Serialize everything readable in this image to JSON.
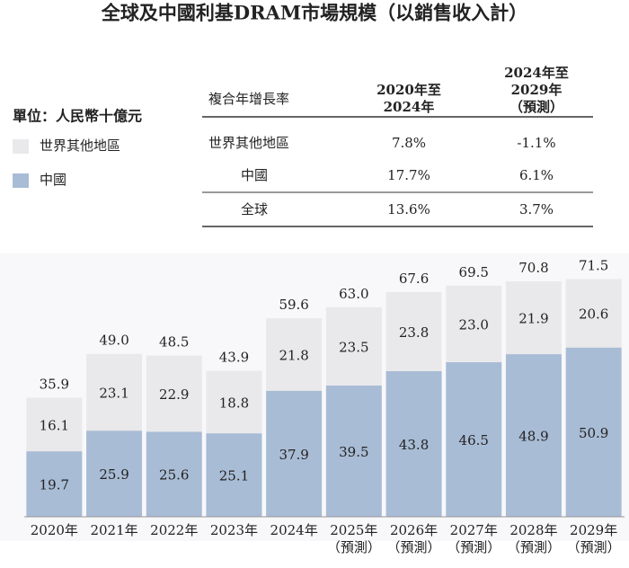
{
  "chart_data": {
    "type": "stacked-bar",
    "title": "全球及中國利基DRAM市場規模（以銷售收入計）",
    "unit": "單位：人民幣十億元",
    "categories": [
      "2020年",
      "2021年",
      "2022年",
      "2023年",
      "2024年",
      "2025年\n（預測）",
      "2026年\n（預測）",
      "2027年\n（預測）",
      "2028年\n（預測）",
      "2029年\n（預測）"
    ],
    "series": [
      {
        "name": "中國",
        "color": "#a9bcd5",
        "values": [
          19.7,
          25.9,
          25.6,
          25.1,
          37.9,
          39.5,
          43.8,
          46.5,
          48.9,
          50.9
        ]
      },
      {
        "name": "世界其他地區",
        "color": "#e9e9eb",
        "values": [
          16.1,
          23.1,
          22.9,
          18.8,
          21.8,
          23.5,
          23.8,
          23.0,
          21.9,
          20.6
        ],
        "value_labels": [
          "16.1",
          "23.1",
          "22.9",
          "18.8",
          "21.8",
          "23.5",
          "23.8",
          "23.0",
          "21.9",
          "20.6"
        ]
      }
    ],
    "totals": [
      35.9,
      49.0,
      48.5,
      43.9,
      59.6,
      63.0,
      67.6,
      69.5,
      70.8,
      71.5
    ],
    "totals_labels": [
      "35.9",
      "49.0",
      "48.5",
      "43.9",
      "59.6",
      "63.0",
      "67.6",
      "69.5",
      "70.8",
      "71.5"
    ]
  },
  "table": {
    "header": [
      "複合年增長率",
      "2020年至\n2024年",
      "2024年至\n2029年\n（預測）"
    ],
    "rows": [
      [
        "世界其他地區",
        "7.8%",
        "-1.1%"
      ],
      [
        "中國",
        "17.7%",
        "6.1%"
      ],
      [
        "全球",
        "13.6%",
        "3.7%"
      ]
    ]
  }
}
